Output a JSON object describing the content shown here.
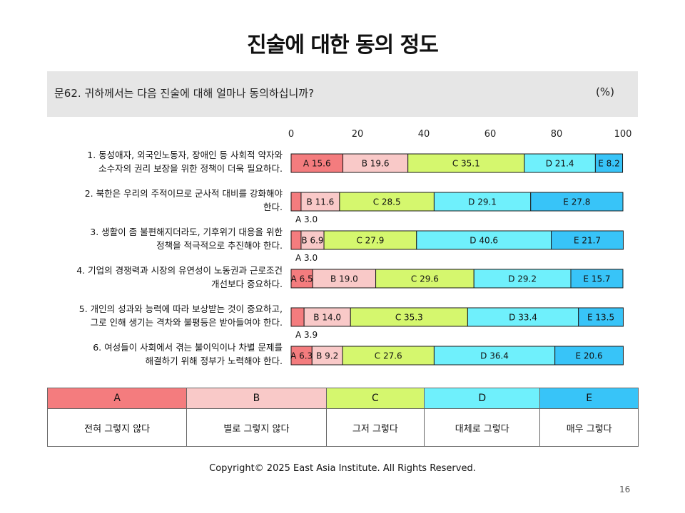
{
  "title": "진술에 대한 동의 정도",
  "question": {
    "text": "문62. 귀하께서는 다음 진술에 대해 얼마나 동의하십니까?",
    "unit": "(%)"
  },
  "statements": [
    {
      "line1": "1. 동성애자, 외국인노동자, 장애인 등 사회적 약자와",
      "line2": "소수자의 권리 보장을 위한 정책이 더욱 필요하다."
    },
    {
      "line1": "2. 북한은 우리의 주적이므로 군사적 대비를 강화해야",
      "line2": "한다."
    },
    {
      "line1": "3. 생활이 좀 불편해지더라도, 기후위기 대응을 위한",
      "line2": "정책을 적극적으로 추진해야 한다."
    },
    {
      "line1": "4. 기업의 경쟁력과 시장의 유연성이 노동권과 근로조건",
      "line2": "개선보다 중요하다."
    },
    {
      "line1": "5. 개인의 성과와 능력에 따라 보상받는 것이 중요하고,",
      "line2": "그로 인해 생기는 격차와 불평등은 받아들여야 한다."
    },
    {
      "line1": "6. 여성들이 사회에서 겪는 불이익이나 차별 문제를",
      "line2": "해결하기 위해 정부가 노력해야 한다."
    }
  ],
  "chart_data": {
    "type": "bar",
    "orientation": "horizontal",
    "stacked": true,
    "xlim": [
      0,
      100
    ],
    "x_ticks": [
      "0",
      "20",
      "40",
      "60",
      "80",
      "100"
    ],
    "categories": [
      "1",
      "2",
      "3",
      "4",
      "5",
      "6"
    ],
    "series": [
      {
        "name": "A",
        "color": "#f47c7e",
        "values": [
          15.6,
          3.0,
          3.0,
          6.5,
          3.9,
          6.3
        ]
      },
      {
        "name": "B",
        "color": "#f9c9c8",
        "values": [
          19.6,
          11.6,
          6.9,
          19.0,
          14.0,
          9.2
        ]
      },
      {
        "name": "C",
        "color": "#d5f76e",
        "values": [
          35.1,
          28.5,
          27.9,
          29.6,
          35.3,
          27.6
        ]
      },
      {
        "name": "D",
        "color": "#6ff0fc",
        "values": [
          21.4,
          29.1,
          40.6,
          29.2,
          33.4,
          36.4
        ]
      },
      {
        "name": "E",
        "color": "#38c4f8",
        "values": [
          8.2,
          27.8,
          21.7,
          15.7,
          13.5,
          20.6
        ]
      }
    ]
  },
  "legend": {
    "columns": [
      {
        "letter": "A",
        "label": "전혀 그렇지 않다",
        "color": "#f47c7e"
      },
      {
        "letter": "B",
        "label": "별로 그렇지 않다",
        "color": "#f9c9c8"
      },
      {
        "letter": "C",
        "label": "그저 그렇다",
        "color": "#d5f76e"
      },
      {
        "letter": "D",
        "label": "대체로 그렇다",
        "color": "#6ff0fc"
      },
      {
        "letter": "E",
        "label": "매우 그렇다",
        "color": "#38c4f8"
      }
    ]
  },
  "footer": {
    "copyright": "Copyright© 2025 East Asia Institute. All Rights Reserved.",
    "page": "16"
  }
}
